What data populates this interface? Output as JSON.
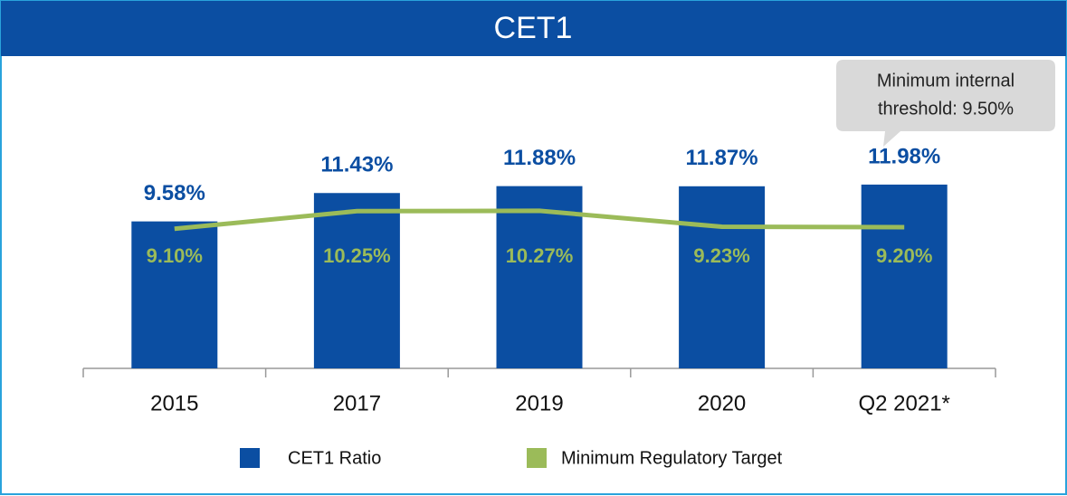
{
  "chart_data": {
    "type": "bar",
    "title": "CET1",
    "categories": [
      "2015",
      "2017",
      "2019",
      "2020",
      "Q2 2021*"
    ],
    "ylim": [
      0,
      20
    ],
    "series": [
      {
        "name": "CET1 Ratio",
        "type": "bar",
        "color": "#0b4ea2",
        "values": [
          9.58,
          11.43,
          11.88,
          11.87,
          11.98
        ],
        "value_labels": [
          "9.58%",
          "11.43%",
          "11.88%",
          "11.87%",
          "11.98%"
        ]
      },
      {
        "name": "Minimum Regulatory Target",
        "type": "line",
        "color": "#9bbb59",
        "values": [
          9.1,
          10.25,
          10.27,
          9.23,
          9.2
        ],
        "value_labels": [
          "9.10%",
          "10.25%",
          "10.27%",
          "9.23%",
          "9.20%"
        ]
      }
    ],
    "annotation": [
      "Minimum internal",
      "threshold: 9.50%"
    ]
  }
}
